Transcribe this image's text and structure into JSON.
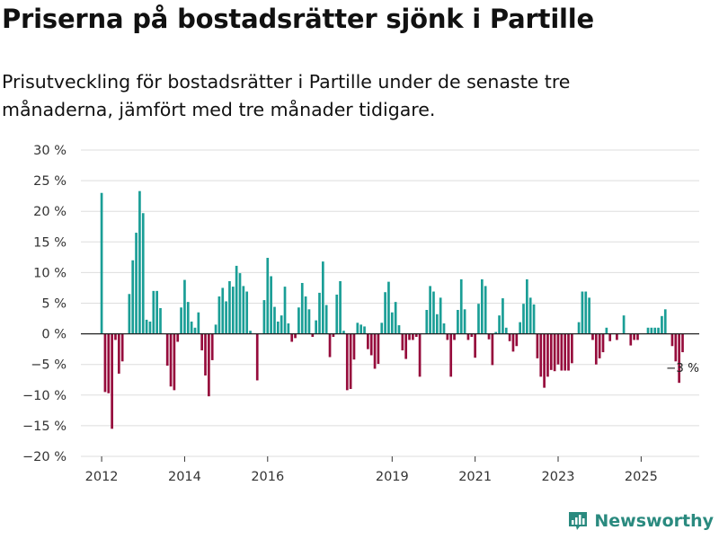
{
  "header": {
    "title": "Priserna på bostadsrätter sjönk i Partille",
    "subtitle": "Prisutveckling för bostadsrätter i Partille under de senaste tre månaderna, jämfört med tre månader tidigare."
  },
  "brand": {
    "name": "Newsworthy",
    "icon": "newsworthy-logo-icon"
  },
  "colors": {
    "positive": "#1a9e96",
    "negative": "#960c3c",
    "grid": "#dddddd",
    "zero": "#222222"
  },
  "chart_data": {
    "type": "bar",
    "title": "Priserna på bostadsrätter sjönk i Partille",
    "xlabel": "",
    "ylabel": "",
    "ylim": [
      -20,
      30
    ],
    "yticks": [
      {
        "value": 30,
        "label": "30 %"
      },
      {
        "value": 25,
        "label": "25 %"
      },
      {
        "value": 20,
        "label": "20 %"
      },
      {
        "value": 15,
        "label": "15 %"
      },
      {
        "value": 10,
        "label": "10 %"
      },
      {
        "value": 5,
        "label": "5 %"
      },
      {
        "value": 0,
        "label": "0 %"
      },
      {
        "value": -5,
        "label": "−5 %"
      },
      {
        "value": -10,
        "label": "−10 %"
      },
      {
        "value": -15,
        "label": "−15 %"
      },
      {
        "value": -20,
        "label": "−20 %"
      }
    ],
    "xlim": [
      2011.5,
      2026.4
    ],
    "xticks": [
      {
        "value": 2012,
        "label": "2012"
      },
      {
        "value": 2014,
        "label": "2014"
      },
      {
        "value": 2016,
        "label": "2016"
      },
      {
        "value": 2019,
        "label": "2019"
      },
      {
        "value": 2021,
        "label": "2021"
      },
      {
        "value": 2023,
        "label": "2023"
      },
      {
        "value": 2025,
        "label": "2025"
      }
    ],
    "series": [
      {
        "name": "Prisutveckling",
        "start": 2012.0,
        "step": 0.08333,
        "values": [
          23,
          -9.5,
          -9.7,
          -15.5,
          -1,
          -6.5,
          -4.5,
          0,
          6.5,
          12,
          16.5,
          23.3,
          19.7,
          2.3,
          2,
          7,
          7,
          4.2,
          0,
          -5.2,
          -8.6,
          -9.2,
          -1.3,
          4.3,
          8.8,
          5.2,
          2,
          1,
          3.5,
          -2.7,
          -6.8,
          -10.2,
          -4.3,
          1.5,
          6.1,
          7.5,
          5.3,
          8.6,
          7.7,
          11.1,
          9.9,
          7.8,
          6.9,
          0.5,
          0,
          -7.6,
          0,
          5.5,
          12.4,
          9.4,
          4.4,
          2,
          3,
          7.7,
          1.7,
          -1.3,
          -0.7,
          4.3,
          8.3,
          6.1,
          4,
          -0.5,
          2.2,
          6.7,
          11.8,
          4.7,
          -3.8,
          -0.5,
          6.4,
          8.6,
          0.5,
          -9.2,
          -9,
          -4.2,
          1.8,
          1.5,
          1.2,
          -2.5,
          -3.5,
          -5.7,
          -4.9,
          1.8,
          6.8,
          8.5,
          3.5,
          5.2,
          1.4,
          -2.7,
          -4.1,
          -1,
          -1,
          -0.5,
          -7,
          0,
          3.9,
          7.8,
          6.9,
          3.2,
          5.9,
          1.7,
          -1,
          -7,
          -1,
          3.9,
          8.9,
          4,
          -1,
          -0.5,
          -3.9,
          4.9,
          8.9,
          7.8,
          -0.9,
          -5.1,
          0.3,
          3,
          5.8,
          1,
          -1.2,
          -2.9,
          -2,
          1.9,
          4.9,
          8.9,
          5.9,
          4.8,
          -4,
          -7,
          -8.8,
          -7,
          -5.9,
          -6.1,
          -5,
          -6,
          -6,
          -6,
          -4.8,
          0,
          1.9,
          6.9,
          6.9,
          5.9,
          -1,
          -5,
          -4,
          -3,
          1,
          -1.2,
          0,
          -1,
          0,
          3,
          0,
          -1.9,
          -1,
          -1,
          0,
          0,
          1,
          1,
          1,
          1,
          2.9,
          4,
          0,
          -2,
          -4.5,
          -8,
          -3
        ]
      }
    ],
    "annotations": [
      {
        "label": "−3 %",
        "value": -3
      }
    ]
  }
}
